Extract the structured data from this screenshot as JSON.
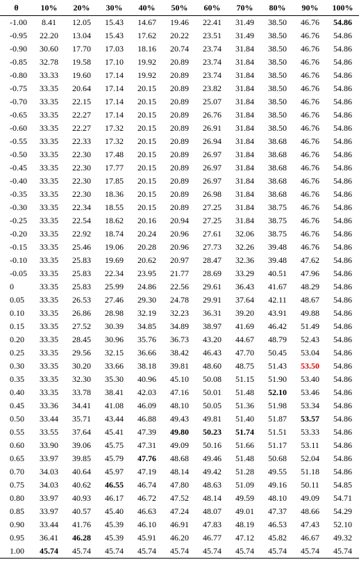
{
  "table": {
    "headers": [
      "θ",
      "10%",
      "20%",
      "30%",
      "40%",
      "50%",
      "60%",
      "70%",
      "80%",
      "90%",
      "100%"
    ],
    "rows": [
      [
        "-1.00",
        "8.41",
        "12.05",
        "15.43",
        "14.67",
        "19.46",
        "22.41",
        "31.49",
        "38.50",
        "46.76",
        "54.86"
      ],
      [
        "-0.95",
        "22.20",
        "13.04",
        "15.43",
        "17.62",
        "20.22",
        "23.51",
        "31.49",
        "38.50",
        "46.76",
        "54.86"
      ],
      [
        "-0.90",
        "30.60",
        "17.70",
        "17.03",
        "18.16",
        "20.74",
        "23.74",
        "31.84",
        "38.50",
        "46.76",
        "54.86"
      ],
      [
        "-0.85",
        "32.78",
        "19.58",
        "17.10",
        "19.92",
        "20.89",
        "23.74",
        "31.84",
        "38.50",
        "46.76",
        "54.86"
      ],
      [
        "-0.80",
        "33.33",
        "19.60",
        "17.14",
        "19.92",
        "20.89",
        "23.74",
        "31.84",
        "38.50",
        "46.76",
        "54.86"
      ],
      [
        "-0.75",
        "33.35",
        "20.64",
        "17.14",
        "20.15",
        "20.89",
        "23.82",
        "31.84",
        "38.50",
        "46.76",
        "54.86"
      ],
      [
        "-0.70",
        "33.35",
        "22.15",
        "17.14",
        "20.15",
        "20.89",
        "25.07",
        "31.84",
        "38.50",
        "46.76",
        "54.86"
      ],
      [
        "-0.65",
        "33.35",
        "22.27",
        "17.14",
        "20.15",
        "20.89",
        "26.76",
        "31.84",
        "38.50",
        "46.76",
        "54.86"
      ],
      [
        "-0.60",
        "33.35",
        "22.27",
        "17.32",
        "20.15",
        "20.89",
        "26.91",
        "31.84",
        "38.50",
        "46.76",
        "54.86"
      ],
      [
        "-0.55",
        "33.35",
        "22.33",
        "17.32",
        "20.15",
        "20.89",
        "26.94",
        "31.84",
        "38.68",
        "46.76",
        "54.86"
      ],
      [
        "-0.50",
        "33.35",
        "22.30",
        "17.48",
        "20.15",
        "20.89",
        "26.97",
        "31.84",
        "38.68",
        "46.76",
        "54.86"
      ],
      [
        "-0.45",
        "33.35",
        "22.30",
        "17.77",
        "20.15",
        "20.89",
        "26.97",
        "31.84",
        "38.68",
        "46.76",
        "54.86"
      ],
      [
        "-0.40",
        "33.35",
        "22.30",
        "17.85",
        "20.15",
        "20.89",
        "26.97",
        "31.84",
        "38.68",
        "46.76",
        "54.86"
      ],
      [
        "-0.35",
        "33.35",
        "22.30",
        "18.36",
        "20.15",
        "20.89",
        "26.98",
        "31.84",
        "38.68",
        "46.76",
        "54.86"
      ],
      [
        "-0.30",
        "33.35",
        "22.34",
        "18.55",
        "20.15",
        "20.89",
        "27.25",
        "31.84",
        "38.75",
        "46.76",
        "54.86"
      ],
      [
        "-0.25",
        "33.35",
        "22.54",
        "18.62",
        "20.16",
        "20.94",
        "27.25",
        "31.84",
        "38.75",
        "46.76",
        "54.86"
      ],
      [
        "-0.20",
        "33.35",
        "22.92",
        "18.74",
        "20.24",
        "20.96",
        "27.61",
        "32.06",
        "38.75",
        "46.76",
        "54.86"
      ],
      [
        "-0.15",
        "33.35",
        "25.46",
        "19.06",
        "20.28",
        "20.96",
        "27.73",
        "32.26",
        "39.48",
        "46.76",
        "54.86"
      ],
      [
        "-0.10",
        "33.35",
        "25.83",
        "19.69",
        "20.62",
        "20.97",
        "28.47",
        "32.36",
        "39.48",
        "47.62",
        "54.86"
      ],
      [
        "-0.05",
        "33.35",
        "25.83",
        "22.34",
        "23.95",
        "21.77",
        "28.69",
        "33.29",
        "40.51",
        "47.96",
        "54.86"
      ],
      [
        "0",
        "33.35",
        "25.83",
        "25.99",
        "24.86",
        "22.56",
        "29.61",
        "36.43",
        "41.67",
        "48.29",
        "54.86"
      ],
      [
        "0.05",
        "33.35",
        "26.53",
        "27.46",
        "29.30",
        "24.78",
        "29.91",
        "37.64",
        "42.11",
        "48.67",
        "54.86"
      ],
      [
        "0.10",
        "33.35",
        "26.86",
        "28.98",
        "32.19",
        "32.23",
        "36.31",
        "39.20",
        "43.91",
        "49.88",
        "54.86"
      ],
      [
        "0.15",
        "33.35",
        "27.52",
        "30.39",
        "34.85",
        "34.89",
        "38.97",
        "41.69",
        "46.42",
        "51.49",
        "54.86"
      ],
      [
        "0.20",
        "33.35",
        "28.45",
        "30.96",
        "35.76",
        "36.73",
        "43.20",
        "44.67",
        "48.79",
        "52.43",
        "54.86"
      ],
      [
        "0.25",
        "33.35",
        "29.56",
        "32.15",
        "36.66",
        "38.42",
        "46.43",
        "47.70",
        "50.45",
        "53.04",
        "54.86"
      ],
      [
        "0.30",
        "33.35",
        "30.20",
        "33.66",
        "38.18",
        "39.81",
        "48.60",
        "48.75",
        "51.43",
        "53.50",
        "54.86"
      ],
      [
        "0.35",
        "33.35",
        "32.30",
        "35.30",
        "40.96",
        "45.10",
        "50.08",
        "51.15",
        "51.90",
        "53.40",
        "54.86"
      ],
      [
        "0.40",
        "33.35",
        "33.78",
        "38.41",
        "42.03",
        "47.16",
        "50.01",
        "51.48",
        "52.10",
        "53.46",
        "54.86"
      ],
      [
        "0.45",
        "33.36",
        "34.41",
        "41.08",
        "46.09",
        "48.10",
        "50.05",
        "51.36",
        "51.98",
        "53.34",
        "54.86"
      ],
      [
        "0.50",
        "33.44",
        "35.71",
        "43.44",
        "46.88",
        "49.43",
        "49.81",
        "51.40",
        "51.87",
        "53.57",
        "54.86"
      ],
      [
        "0.55",
        "33.55",
        "37.64",
        "45.41",
        "47.39",
        "49.80",
        "50.23",
        "51.74",
        "51.51",
        "53.33",
        "54.86"
      ],
      [
        "0.60",
        "33.90",
        "39.06",
        "45.75",
        "47.31",
        "49.09",
        "50.16",
        "51.66",
        "51.17",
        "53.11",
        "54.86"
      ],
      [
        "0.65",
        "33.97",
        "39.85",
        "45.79",
        "47.76",
        "48.68",
        "49.46",
        "51.48",
        "50.68",
        "52.04",
        "54.86"
      ],
      [
        "0.70",
        "34.03",
        "40.64",
        "45.97",
        "47.19",
        "48.14",
        "49.42",
        "51.28",
        "49.55",
        "51.18",
        "54.86"
      ],
      [
        "0.75",
        "34.03",
        "40.62",
        "46.55",
        "46.74",
        "47.80",
        "48.63",
        "51.09",
        "49.16",
        "50.11",
        "54.85"
      ],
      [
        "0.80",
        "33.97",
        "40.93",
        "46.17",
        "46.72",
        "47.52",
        "48.14",
        "49.59",
        "48.10",
        "49.09",
        "54.71"
      ],
      [
        "0.85",
        "33.97",
        "40.57",
        "45.40",
        "46.63",
        "47.24",
        "48.07",
        "49.01",
        "47.37",
        "48.66",
        "54.29"
      ],
      [
        "0.90",
        "33.44",
        "41.76",
        "45.39",
        "46.10",
        "46.91",
        "47.83",
        "48.19",
        "46.53",
        "47.43",
        "52.10"
      ],
      [
        "0.95",
        "36.41",
        "46.28",
        "45.39",
        "45.91",
        "46.20",
        "46.77",
        "47.12",
        "45.82",
        "46.67",
        "49.32"
      ],
      [
        "1.00",
        "45.74",
        "45.74",
        "45.74",
        "45.74",
        "45.74",
        "45.74",
        "45.74",
        "45.74",
        "45.74",
        "45.74"
      ]
    ],
    "bold_cells": [
      [
        0,
        10
      ],
      [
        28,
        8
      ],
      [
        30,
        9
      ],
      [
        31,
        5
      ],
      [
        31,
        6
      ],
      [
        31,
        7
      ],
      [
        33,
        4
      ],
      [
        35,
        3
      ],
      [
        39,
        2
      ],
      [
        40,
        1
      ]
    ],
    "red_cells": [
      [
        26,
        9
      ]
    ],
    "highlight_color": "#e00000"
  }
}
